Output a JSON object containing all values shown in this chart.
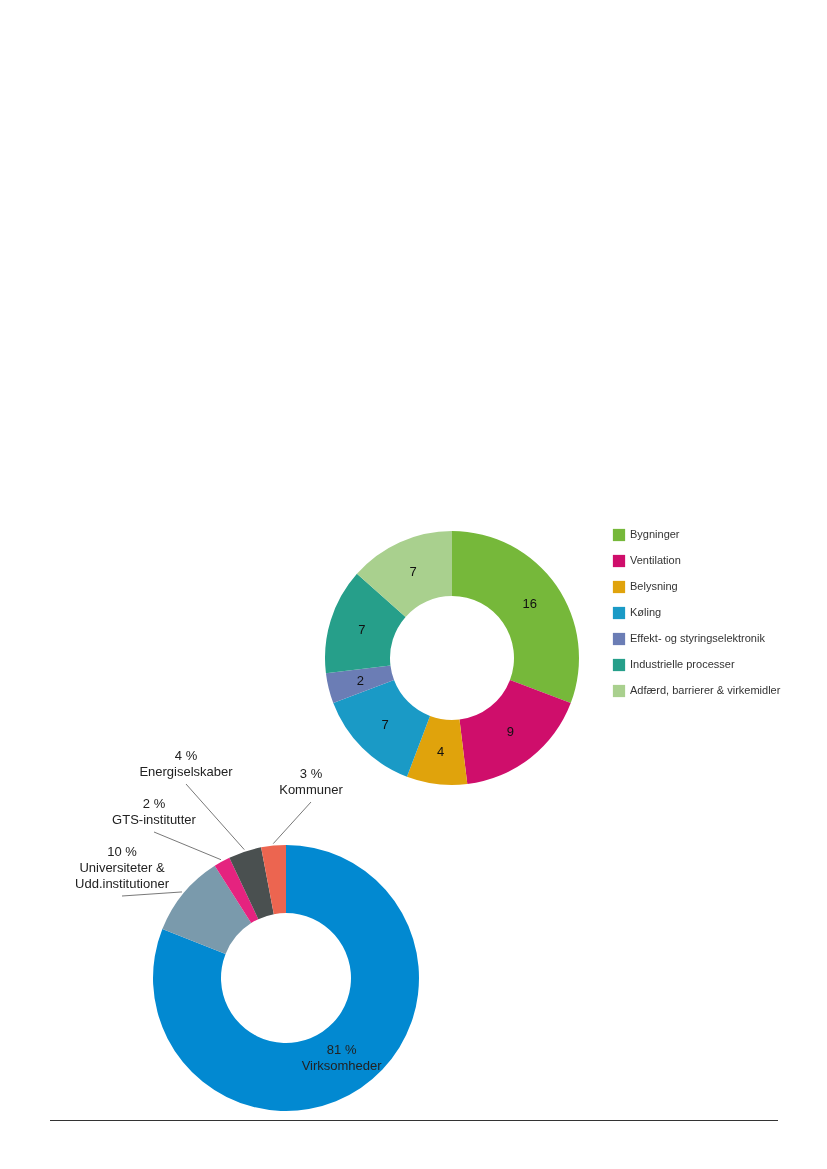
{
  "chart_data": [
    {
      "type": "donut",
      "categories": [
        "Bygninger",
        "Ventilation",
        "Belysning",
        "Køling",
        "Effekt- og styringselektronik",
        "Industrielle processer",
        "Adfærd, barrierer & virkemidler"
      ],
      "values": [
        16,
        9,
        4,
        7,
        2,
        7,
        7
      ],
      "colors": [
        "#76b83a",
        "#cf0e6b",
        "#e0a30c",
        "#1a9ac6",
        "#6b7db5",
        "#269f8a",
        "#a9d08e"
      ],
      "data_labels": true,
      "legend": "right"
    },
    {
      "type": "donut",
      "categories": [
        "Virksomheder",
        "Universiteter & Udd.institutioner",
        "GTS-institutter",
        "Energiselskaber",
        "Kommuner"
      ],
      "values": [
        81,
        10,
        2,
        4,
        3
      ],
      "colors": [
        "#0289d1",
        "#7a9aac",
        "#e5237f",
        "#4a5050",
        "#ec6550"
      ],
      "value_labels": [
        "81 %",
        "10 %",
        "2 %",
        "4 %",
        "3 %"
      ]
    }
  ]
}
